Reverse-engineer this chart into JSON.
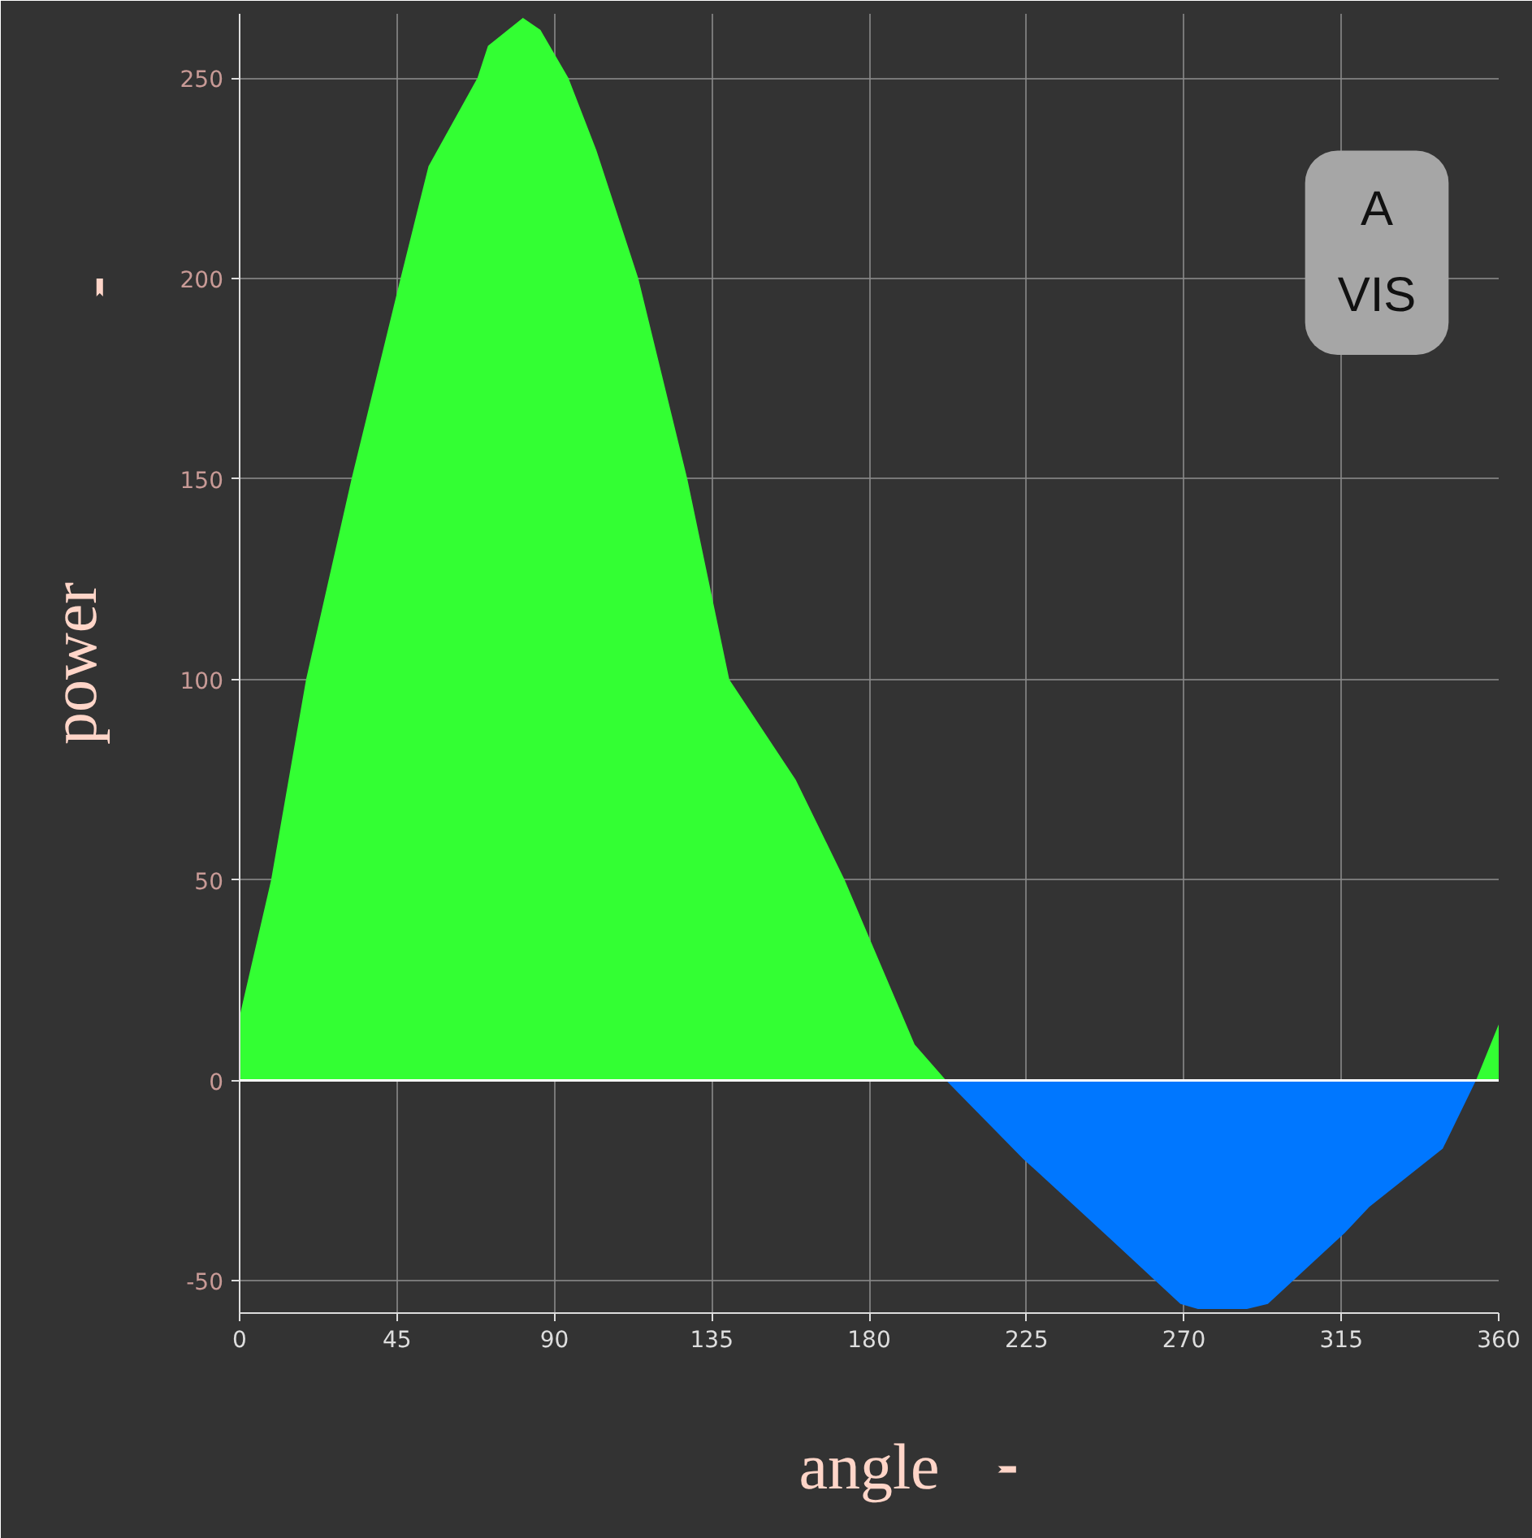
{
  "chart_data": {
    "type": "area",
    "xlabel": "angle",
    "ylabel": "power",
    "annotations": [
      "A",
      "VIS"
    ],
    "series": [
      {
        "color": "#33ff33",
        "x": [
          0,
          9,
          19,
          32,
          46,
          54,
          68,
          71,
          81,
          86,
          94,
          102,
          114,
          128,
          140,
          159,
          173,
          193,
          202,
          280,
          353.5,
          360
        ],
        "values": [
          16,
          50,
          100,
          150,
          200,
          228,
          250,
          258,
          265,
          262,
          250,
          232,
          200,
          150,
          100,
          75,
          50,
          9,
          0,
          null,
          0,
          14
        ]
      },
      {
        "color": "#0077ff",
        "x": [
          202,
          224,
          244,
          269,
          274,
          288,
          294,
          316,
          323,
          344,
          353.5
        ],
        "values": [
          0,
          -19.5,
          -35.5,
          -55.7,
          -57,
          -57,
          -55.7,
          -38,
          -31.5,
          -17,
          0
        ]
      }
    ],
    "xlim": [
      0,
      360
    ],
    "ylim": [
      -58,
      266
    ],
    "xticks": [
      0,
      45,
      90,
      135,
      180,
      225,
      270,
      315,
      360
    ],
    "yticks": [
      -50,
      0,
      50,
      100,
      150,
      200,
      250
    ],
    "ref_lines": [
      {
        "axis": "y",
        "value": 0,
        "color": "#ffffff"
      }
    ],
    "grid": true
  }
}
